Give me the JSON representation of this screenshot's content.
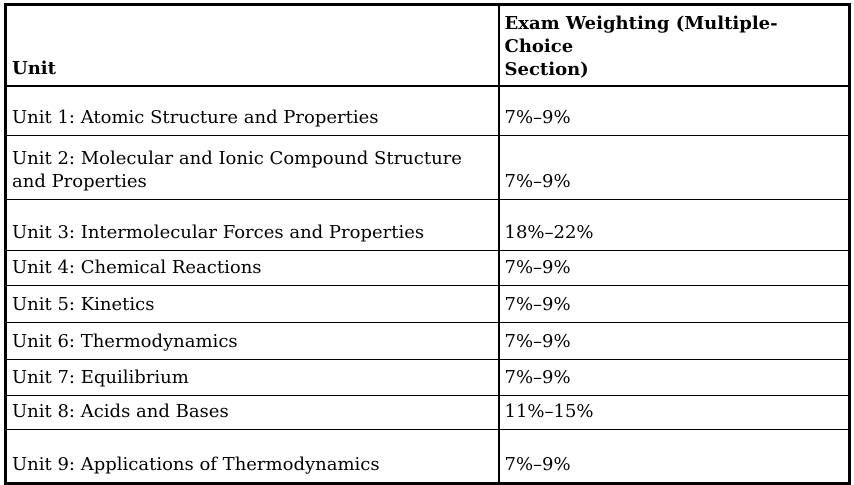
{
  "colors": {
    "background": "#ffffff",
    "text": "#000000",
    "border": "#000000"
  },
  "table": {
    "header": {
      "unit": "Unit",
      "weighting": "Exam Weighting (Multiple-Choice\nSection)"
    },
    "rows": [
      {
        "unit": "Unit 1: Atomic Structure and Properties",
        "weighting": "7%–9%"
      },
      {
        "unit": "Unit 2: Molecular and Ionic Compound Structure\nand Properties",
        "weighting": "7%–9%"
      },
      {
        "unit": "Unit 3: Intermolecular Forces and Properties",
        "weighting": "18%–22%"
      },
      {
        "unit": "Unit 4: Chemical Reactions",
        "weighting": "7%–9%"
      },
      {
        "unit": "Unit 5: Kinetics",
        "weighting": "7%–9%"
      },
      {
        "unit": "Unit 6: Thermodynamics",
        "weighting": "7%–9%"
      },
      {
        "unit": "Unit 7: Equilibrium",
        "weighting": "7%–9%"
      },
      {
        "unit": "Unit 8: Acids and Bases",
        "weighting": "11%–15%"
      },
      {
        "unit": "Unit 9: Applications of Thermodynamics",
        "weighting": "7%–9%"
      }
    ]
  },
  "chart_data": {
    "type": "table",
    "title": "",
    "columns": [
      "Unit",
      "Exam Weighting (Multiple-Choice Section)"
    ],
    "rows": [
      [
        "Unit 1: Atomic Structure and Properties",
        "7%–9%"
      ],
      [
        "Unit 2: Molecular and Ionic Compound Structure and Properties",
        "7%–9%"
      ],
      [
        "Unit 3: Intermolecular Forces and Properties",
        "18%–22%"
      ],
      [
        "Unit 4: Chemical Reactions",
        "7%–9%"
      ],
      [
        "Unit 5: Kinetics",
        "7%–9%"
      ],
      [
        "Unit 6: Thermodynamics",
        "7%–9%"
      ],
      [
        "Unit 7: Equilibrium",
        "7%–9%"
      ],
      [
        "Unit 8: Acids and Bases",
        "11%–15%"
      ],
      [
        "Unit 9: Applications of Thermodynamics",
        "7%–9%"
      ]
    ]
  }
}
